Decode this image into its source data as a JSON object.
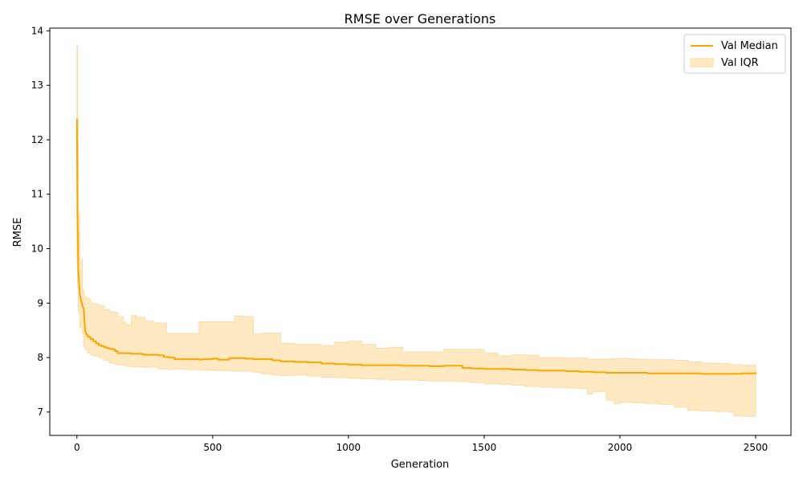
{
  "chart_data": {
    "type": "line",
    "title": "RMSE over Generations",
    "xlabel": "Generation",
    "ylabel": "RMSE",
    "xlim": [
      -100,
      2630
    ],
    "ylim": [
      6.57,
      14.05
    ],
    "xticks": [
      0,
      500,
      1000,
      1500,
      2000,
      2500
    ],
    "yticks": [
      7,
      8,
      9,
      10,
      11,
      12,
      13,
      14
    ],
    "grid": false,
    "legend_position": "top-right",
    "colors": {
      "median": "#FFA500",
      "iqr_fill": "#FFE9C2",
      "iqr_edge": "#FBDCA6"
    },
    "series": [
      {
        "name": "Val Median",
        "kind": "line",
        "x": [
          0,
          2,
          5,
          10,
          15,
          20,
          25,
          30,
          35,
          40,
          50,
          60,
          70,
          80,
          90,
          100,
          110,
          120,
          130,
          140,
          150,
          200,
          240,
          250,
          300,
          320,
          340,
          360,
          400,
          450,
          460,
          500,
          520,
          560,
          620,
          650,
          680,
          720,
          750,
          800,
          850,
          900,
          950,
          1000,
          1050,
          1100,
          1150,
          1200,
          1250,
          1300,
          1350,
          1400,
          1420,
          1450,
          1500,
          1550,
          1600,
          1650,
          1700,
          1750,
          1800,
          1850,
          1900,
          1950,
          2000,
          2050,
          2100,
          2150,
          2200,
          2250,
          2300,
          2350,
          2400,
          2450,
          2500
        ],
        "y": [
          12.38,
          10.7,
          9.6,
          9.2,
          9.05,
          8.95,
          8.9,
          8.5,
          8.42,
          8.38,
          8.34,
          8.3,
          8.26,
          8.23,
          8.21,
          8.19,
          8.17,
          8.16,
          8.15,
          8.12,
          8.08,
          8.07,
          8.06,
          8.05,
          8.04,
          8.01,
          8.0,
          7.97,
          7.97,
          7.96,
          7.97,
          7.98,
          7.96,
          7.99,
          7.98,
          7.97,
          7.97,
          7.95,
          7.93,
          7.92,
          7.91,
          7.89,
          7.88,
          7.87,
          7.86,
          7.86,
          7.86,
          7.85,
          7.85,
          7.84,
          7.85,
          7.85,
          7.81,
          7.8,
          7.79,
          7.79,
          7.78,
          7.77,
          7.76,
          7.76,
          7.75,
          7.74,
          7.73,
          7.72,
          7.72,
          7.72,
          7.71,
          7.71,
          7.71,
          7.71,
          7.7,
          7.7,
          7.7,
          7.71,
          7.73
        ]
      },
      {
        "name": "Val IQR",
        "kind": "band",
        "x": [
          0,
          2,
          5,
          10,
          20,
          25,
          30,
          40,
          50,
          60,
          80,
          100,
          120,
          140,
          150,
          170,
          180,
          200,
          220,
          250,
          280,
          300,
          330,
          350,
          400,
          450,
          480,
          500,
          520,
          560,
          580,
          620,
          650,
          680,
          720,
          750,
          800,
          850,
          900,
          950,
          1000,
          1050,
          1100,
          1150,
          1200,
          1250,
          1300,
          1350,
          1400,
          1450,
          1500,
          1550,
          1600,
          1650,
          1700,
          1750,
          1800,
          1850,
          1880,
          1900,
          1930,
          1950,
          1980,
          2000,
          2050,
          2100,
          2150,
          2200,
          2250,
          2300,
          2350,
          2400,
          2420,
          2450,
          2500
        ],
        "low": [
          11.0,
          9.8,
          9.3,
          8.85,
          8.55,
          8.45,
          8.2,
          8.15,
          8.08,
          8.05,
          8.03,
          8.0,
          7.95,
          7.9,
          7.88,
          7.87,
          7.86,
          7.84,
          7.83,
          7.83,
          7.82,
          7.82,
          7.79,
          7.78,
          7.79,
          7.78,
          7.77,
          7.77,
          7.76,
          7.76,
          7.76,
          7.75,
          7.75,
          7.73,
          7.7,
          7.68,
          7.67,
          7.68,
          7.66,
          7.64,
          7.63,
          7.62,
          7.61,
          7.6,
          7.59,
          7.59,
          7.58,
          7.57,
          7.57,
          7.56,
          7.54,
          7.52,
          7.51,
          7.49,
          7.47,
          7.46,
          7.45,
          7.44,
          7.43,
          7.33,
          7.37,
          7.38,
          7.22,
          7.15,
          7.18,
          7.17,
          7.15,
          7.14,
          7.09,
          7.03,
          7.02,
          7.01,
          7.0,
          6.93,
          6.92
        ],
        "high": [
          13.72,
          12.4,
          10.6,
          9.8,
          9.25,
          9.15,
          9.1,
          9.08,
          9.0,
          8.98,
          8.95,
          8.88,
          8.84,
          8.82,
          8.75,
          8.65,
          8.6,
          8.77,
          8.74,
          8.67,
          8.64,
          8.63,
          8.44,
          8.44,
          8.44,
          8.66,
          8.66,
          8.66,
          8.66,
          8.66,
          8.76,
          8.75,
          8.43,
          8.45,
          8.45,
          8.26,
          8.24,
          8.24,
          8.22,
          8.28,
          8.3,
          8.24,
          8.17,
          8.19,
          8.1,
          8.1,
          8.1,
          8.15,
          8.15,
          8.15,
          8.08,
          8.03,
          8.05,
          8.04,
          8.0,
          8.0,
          7.99,
          7.99,
          7.97,
          7.97,
          7.97,
          7.97,
          7.98,
          7.98,
          7.97,
          7.96,
          7.96,
          7.95,
          7.92,
          7.9,
          7.89,
          7.87,
          7.87,
          7.86,
          7.86
        ]
      }
    ]
  }
}
